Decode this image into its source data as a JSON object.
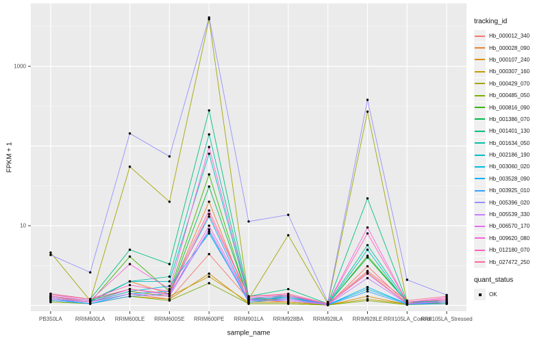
{
  "figure": {
    "background": "#ffffff",
    "panel_background": "#ebebeb",
    "grid_major_color": "#ffffff",
    "grid_minor_color": "#f5f5f5",
    "tick_mark_color": "#333333",
    "tick_label_color": "#4d4d4d",
    "point_color": "#000000"
  },
  "chart_data": {
    "type": "line",
    "title": "",
    "xlabel": "sample_name",
    "ylabel": "FPKM + 1",
    "y_scale": "log10",
    "ylim": [
      1,
      6000
    ],
    "grid": true,
    "legend_title": "tracking_id",
    "legend_position": "right",
    "y_ticks": [
      {
        "label": "1000",
        "value": 1000
      },
      {
        "label": "10",
        "value": 10
      }
    ],
    "y_grid_major_values": [
      1,
      10,
      100,
      1000
    ],
    "y_grid_minor_values": [
      3.162,
      31.62,
      316.2,
      3162
    ],
    "categories": [
      "PB350LA",
      "RRIM600LA",
      "RRIM600LE",
      "RRIM600SE",
      "RRIM600PE",
      "RRIM901LA",
      "RRIM928BA",
      "RRIM928LA",
      "RRIM928LE",
      "RRII105LA_Control",
      "RRII105LA_Stressed"
    ],
    "series": [
      {
        "name": "Hb_000012_340",
        "color": "#F8766D",
        "values": [
          1.3,
          1.1,
          1.4,
          1.2,
          4.4,
          1.2,
          1.1,
          1.02,
          3.1,
          1.05,
          1.2
        ]
      },
      {
        "name": "Hb_000028_090",
        "color": "#EA8331",
        "values": [
          1.2,
          1.1,
          2.0,
          1.4,
          20.0,
          1.1,
          1.1,
          1.02,
          2.6,
          1.05,
          1.1
        ]
      },
      {
        "name": "Hb_000107_240",
        "color": "#D89000",
        "values": [
          1.15,
          1.05,
          1.3,
          1.2,
          2.5,
          1.05,
          1.05,
          1.01,
          1.3,
          1.03,
          1.05
        ]
      },
      {
        "name": "Hb_000307_160",
        "color": "#C09B00",
        "values": [
          1.25,
          1.1,
          1.5,
          1.3,
          2.3,
          1.1,
          1.1,
          1.02,
          1.2,
          1.04,
          1.1
        ]
      },
      {
        "name": "Hb_000429_070",
        "color": "#A3A500",
        "values": [
          4.6,
          1.15,
          55.0,
          20.0,
          3900,
          1.2,
          7.6,
          1.05,
          270,
          1.1,
          1.05
        ]
      },
      {
        "name": "Hb_000485_050",
        "color": "#7CAE00",
        "values": [
          1.1,
          1.05,
          1.3,
          1.15,
          1.9,
          1.05,
          1.05,
          1.01,
          1.15,
          1.02,
          1.05
        ]
      },
      {
        "name": "Hb_000816_090",
        "color": "#39B600",
        "values": [
          1.2,
          1.1,
          4.1,
          1.5,
          44.0,
          1.15,
          1.2,
          1.03,
          4.2,
          1.1,
          1.1
        ]
      },
      {
        "name": "Hb_001386_070",
        "color": "#00BB4E",
        "values": [
          1.3,
          1.15,
          1.6,
          1.4,
          31.0,
          1.2,
          1.25,
          1.05,
          4.0,
          1.1,
          1.1
        ]
      },
      {
        "name": "Hb_001401_130",
        "color": "#00BF7D",
        "values": [
          1.4,
          1.2,
          5.0,
          3.3,
          280,
          1.3,
          1.6,
          1.05,
          22.0,
          1.1,
          1.15
        ]
      },
      {
        "name": "Hb_001634_050",
        "color": "#00C1A3",
        "values": [
          1.3,
          1.15,
          2.0,
          2.3,
          140,
          1.25,
          1.3,
          1.05,
          5.7,
          1.1,
          1.1
        ]
      },
      {
        "name": "Hb_002186_190",
        "color": "#00BFC4",
        "values": [
          1.25,
          1.1,
          2.0,
          2.0,
          80.0,
          1.2,
          1.35,
          1.02,
          5.0,
          1.05,
          1.1
        ]
      },
      {
        "name": "Hb_003060_020",
        "color": "#00BAE0",
        "values": [
          1.2,
          1.1,
          1.5,
          1.75,
          8.0,
          1.15,
          1.3,
          1.02,
          1.6,
          1.05,
          1.05
        ]
      },
      {
        "name": "Hb_003528_090",
        "color": "#00B0F6",
        "values": [
          1.2,
          1.05,
          1.4,
          1.5,
          13.0,
          1.15,
          1.25,
          1.02,
          1.7,
          1.05,
          1.05
        ]
      },
      {
        "name": "Hb_003925_010",
        "color": "#35A2FF",
        "values": [
          1.15,
          1.05,
          1.3,
          1.4,
          8.5,
          1.1,
          1.2,
          1.01,
          1.5,
          1.03,
          1.05
        ]
      },
      {
        "name": "Hb_005396_020",
        "color": "#9590FF",
        "values": [
          4.3,
          2.6,
          144,
          74.0,
          4100,
          11.3,
          13.7,
          1.1,
          380,
          2.1,
          1.35
        ]
      },
      {
        "name": "Hb_005539_330",
        "color": "#C77CFF",
        "values": [
          1.2,
          1.1,
          1.4,
          1.3,
          9.0,
          1.15,
          1.15,
          1.02,
          2.2,
          1.05,
          1.1
        ]
      },
      {
        "name": "Hb_006570_170",
        "color": "#E76BF3",
        "values": [
          1.25,
          1.1,
          1.6,
          1.35,
          10.0,
          1.2,
          1.2,
          1.03,
          2.5,
          1.05,
          1.15
        ]
      },
      {
        "name": "Hb_009620_080",
        "color": "#FA62DB",
        "values": [
          1.3,
          1.15,
          3.3,
          1.6,
          97.0,
          1.25,
          1.3,
          1.05,
          9.5,
          1.1,
          1.2
        ]
      },
      {
        "name": "Hb_012180_070",
        "color": "#FF62BC",
        "values": [
          1.35,
          1.2,
          1.8,
          1.5,
          15.5,
          1.3,
          1.35,
          1.05,
          8.0,
          1.1,
          1.25
        ]
      },
      {
        "name": "Hb_027472_250",
        "color": "#FF6A98",
        "values": [
          1.4,
          1.2,
          1.6,
          1.4,
          14.0,
          1.3,
          1.4,
          1.05,
          2.7,
          1.15,
          1.3
        ]
      }
    ]
  },
  "quant_legend": {
    "title": "quant_status",
    "items": [
      {
        "label": "OK"
      }
    ]
  }
}
